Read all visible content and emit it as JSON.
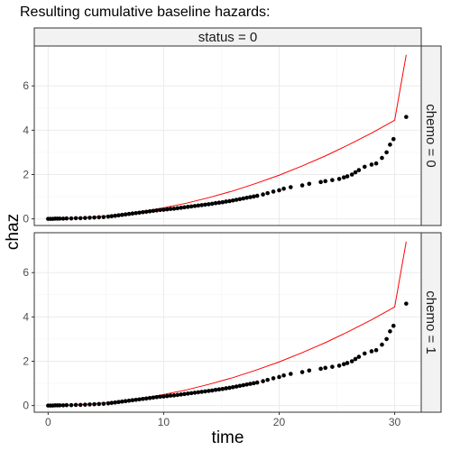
{
  "chart_data": {
    "type": "scatter",
    "title": "Resulting cumulative baseline hazards:",
    "xlabel": "time",
    "ylabel": "chaz",
    "xlim": [
      -1.2,
      32.3
    ],
    "ylim": [
      -0.3,
      7.8
    ],
    "x_ticks": [
      0,
      10,
      20,
      30
    ],
    "y_ticks": [
      0,
      2,
      4,
      6
    ],
    "grid": true,
    "col_strip": "status = 0",
    "row_strips": [
      "chemo = 0",
      "chemo = 1"
    ],
    "colors": {
      "points": "#000000",
      "line": "#ff0000",
      "strip_bg": "#f2f2f2",
      "border": "#333333"
    },
    "line": {
      "x": [
        0,
        2,
        4,
        6,
        8,
        10,
        12,
        14,
        16,
        18,
        20,
        22,
        24,
        26,
        28,
        30,
        31
      ],
      "y": [
        0,
        0.02,
        0.08,
        0.18,
        0.31,
        0.5,
        0.71,
        0.97,
        1.26,
        1.6,
        1.97,
        2.39,
        2.84,
        3.34,
        3.87,
        4.45,
        7.4
      ]
    },
    "points": {
      "x": [
        0.0,
        0.2,
        0.4,
        0.6,
        0.8,
        1.0,
        1.3,
        1.6,
        2.0,
        2.4,
        2.8,
        3.2,
        3.6,
        4.0,
        4.4,
        4.8,
        5.2,
        5.5,
        5.8,
        6.1,
        6.4,
        6.7,
        7.0,
        7.3,
        7.6,
        7.9,
        8.2,
        8.5,
        8.8,
        9.1,
        9.4,
        9.7,
        10.0,
        10.3,
        10.6,
        10.9,
        11.2,
        11.5,
        11.8,
        12.1,
        12.4,
        12.7,
        13.0,
        13.3,
        13.6,
        13.9,
        14.2,
        14.5,
        14.8,
        15.1,
        15.4,
        15.7,
        16.0,
        16.3,
        16.6,
        16.9,
        17.2,
        17.5,
        17.8,
        18.1,
        18.6,
        19.0,
        19.5,
        20.0,
        20.4,
        21.0,
        22.0,
        22.6,
        23.6,
        24.0,
        24.6,
        25.2,
        25.6,
        25.9,
        26.3,
        26.6,
        26.9,
        27.4,
        28.0,
        28.4,
        28.9,
        29.3,
        29.6,
        29.9,
        31.0
      ],
      "y": [
        0.0,
        0.0,
        0.0,
        0.01,
        0.01,
        0.01,
        0.01,
        0.02,
        0.02,
        0.03,
        0.03,
        0.04,
        0.05,
        0.06,
        0.07,
        0.08,
        0.1,
        0.12,
        0.14,
        0.16,
        0.18,
        0.2,
        0.22,
        0.24,
        0.26,
        0.28,
        0.3,
        0.32,
        0.34,
        0.36,
        0.38,
        0.4,
        0.41,
        0.43,
        0.45,
        0.46,
        0.48,
        0.5,
        0.52,
        0.54,
        0.56,
        0.58,
        0.6,
        0.62,
        0.64,
        0.66,
        0.68,
        0.71,
        0.73,
        0.75,
        0.78,
        0.8,
        0.83,
        0.86,
        0.89,
        0.92,
        0.95,
        0.98,
        1.01,
        1.04,
        1.1,
        1.16,
        1.23,
        1.29,
        1.36,
        1.43,
        1.51,
        1.58,
        1.66,
        1.7,
        1.75,
        1.8,
        1.87,
        1.92,
        2.0,
        2.1,
        2.2,
        2.35,
        2.45,
        2.5,
        2.75,
        3.0,
        3.35,
        3.6,
        4.6
      ]
    }
  }
}
